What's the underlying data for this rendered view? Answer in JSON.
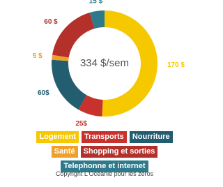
{
  "chart_data": {
    "type": "donut",
    "center_label": "334 $/sem",
    "categories": [
      "Logement",
      "Transports",
      "Nourriture",
      "Santé",
      "Shopping et sorties",
      "Telephonne et internet"
    ],
    "values": [
      170,
      25,
      60,
      5,
      60,
      15
    ],
    "value_labels": [
      "170 $",
      "25$",
      "60$",
      "5 $",
      "60 $",
      "15 $"
    ],
    "colors": [
      "#f5c800",
      "#c8322e",
      "#235d70",
      "#f0a02a",
      "#b3302b",
      "#2d7a8c"
    ],
    "caption": "Copyright L'Océanie pour les zéros"
  }
}
